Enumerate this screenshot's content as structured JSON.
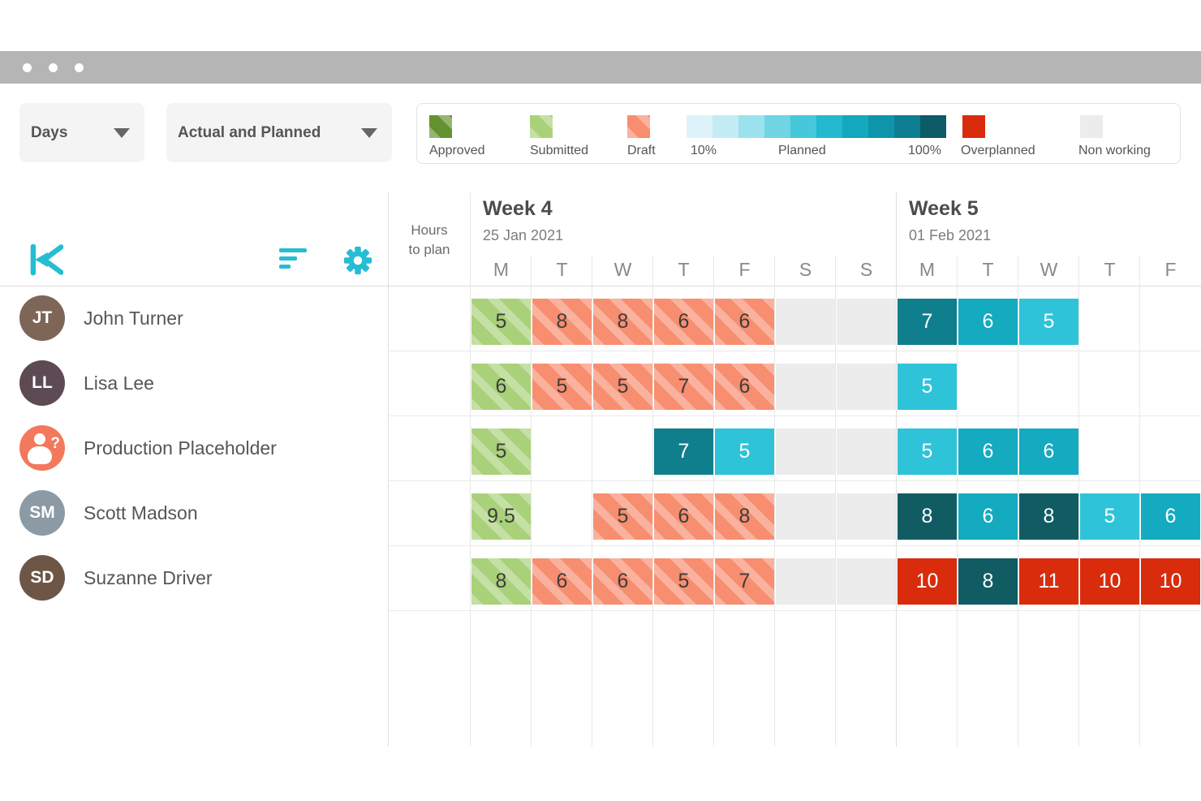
{
  "window": {
    "dots": 3
  },
  "toolbar": {
    "view_dropdown": "Days",
    "mode_dropdown": "Actual and Planned"
  },
  "legend": {
    "approved": {
      "label": "Approved",
      "color": "#64922f"
    },
    "submitted": {
      "label": "Submitted",
      "color": "#a9d179"
    },
    "draft": {
      "label": "Draft",
      "color": "#f78e70"
    },
    "planned_scale": {
      "min_label": "10%",
      "mid_label": "Planned",
      "max_label": "100%",
      "colors": [
        "#def3f9",
        "#c3ecf5",
        "#9be2ee",
        "#70d4e4",
        "#46c7da",
        "#24b9cf",
        "#14a8be",
        "#0f95ab",
        "#0e7e92",
        "#0d5b66"
      ]
    },
    "overplanned": {
      "label": "Overplanned",
      "color": "#d92c0d"
    },
    "non_working": {
      "label": "Non working",
      "color": "#ececec"
    }
  },
  "grid": {
    "hours_to_plan": "Hours to plan",
    "weeks": [
      {
        "title": "Week 4",
        "date": "25 Jan 2021",
        "days": [
          "M",
          "T",
          "W",
          "T",
          "F",
          "S",
          "S"
        ]
      },
      {
        "title": "Week 5",
        "date": "01 Feb 2021",
        "days": [
          "M",
          "T",
          "W",
          "T",
          "F"
        ]
      }
    ],
    "rows": [
      {
        "name": "John Turner",
        "initials": "JT",
        "avatar_color": "#7d6557",
        "placeholder": false,
        "cells": [
          {
            "v": "5",
            "type": "submitted"
          },
          {
            "v": "8",
            "type": "draft"
          },
          {
            "v": "8",
            "type": "draft"
          },
          {
            "v": "6",
            "type": "draft"
          },
          {
            "v": "6",
            "type": "draft"
          },
          {
            "type": "nonworking"
          },
          {
            "type": "nonworking"
          },
          {
            "v": "7",
            "type": "planned",
            "color": "#0f7e8d"
          },
          {
            "v": "6",
            "type": "planned",
            "color": "#14aac0"
          },
          {
            "v": "5",
            "type": "planned",
            "color": "#2fc3d9"
          },
          {
            "type": "empty"
          },
          {
            "type": "empty"
          }
        ]
      },
      {
        "name": "Lisa Lee",
        "initials": "LL",
        "avatar_color": "#5e4a53",
        "placeholder": false,
        "cells": [
          {
            "v": "6",
            "type": "submitted"
          },
          {
            "v": "5",
            "type": "draft"
          },
          {
            "v": "5",
            "type": "draft"
          },
          {
            "v": "7",
            "type": "draft"
          },
          {
            "v": "6",
            "type": "draft"
          },
          {
            "type": "nonworking"
          },
          {
            "type": "nonworking"
          },
          {
            "v": "5",
            "type": "planned",
            "color": "#2fc3d9"
          },
          {
            "type": "empty"
          },
          {
            "type": "empty"
          },
          {
            "type": "empty"
          },
          {
            "type": "empty"
          }
        ]
      },
      {
        "name": "Production Placeholder",
        "initials": "",
        "avatar_color": "#f4785c",
        "placeholder": true,
        "cells": [
          {
            "v": "5",
            "type": "submitted"
          },
          {
            "type": "empty"
          },
          {
            "type": "empty"
          },
          {
            "v": "7",
            "type": "planned",
            "color": "#0f7e8d"
          },
          {
            "v": "5",
            "type": "planned",
            "color": "#2fc3d9"
          },
          {
            "type": "nonworking"
          },
          {
            "type": "nonworking"
          },
          {
            "v": "5",
            "type": "planned",
            "color": "#2fc3d9"
          },
          {
            "v": "6",
            "type": "planned",
            "color": "#14aac0"
          },
          {
            "v": "6",
            "type": "planned",
            "color": "#14aac0"
          },
          {
            "type": "empty"
          },
          {
            "type": "empty"
          }
        ]
      },
      {
        "name": "Scott Madson",
        "initials": "SM",
        "avatar_color": "#8b9aa5",
        "placeholder": false,
        "cells": [
          {
            "v": "9.5",
            "type": "submitted"
          },
          {
            "type": "empty"
          },
          {
            "v": "5",
            "type": "draft"
          },
          {
            "v": "6",
            "type": "draft"
          },
          {
            "v": "8",
            "type": "draft"
          },
          {
            "type": "nonworking"
          },
          {
            "type": "nonworking"
          },
          {
            "v": "8",
            "type": "planned",
            "color": "#115c63"
          },
          {
            "v": "6",
            "type": "planned",
            "color": "#14aac0"
          },
          {
            "v": "8",
            "type": "planned",
            "color": "#115c63"
          },
          {
            "v": "5",
            "type": "planned",
            "color": "#2fc3d9"
          },
          {
            "v": "6",
            "type": "planned",
            "color": "#14aac0"
          }
        ]
      },
      {
        "name": "Suzanne Driver",
        "initials": "SD",
        "avatar_color": "#6e5647",
        "placeholder": false,
        "cells": [
          {
            "v": "8",
            "type": "submitted"
          },
          {
            "v": "6",
            "type": "draft"
          },
          {
            "v": "6",
            "type": "draft"
          },
          {
            "v": "5",
            "type": "draft"
          },
          {
            "v": "7",
            "type": "draft"
          },
          {
            "type": "nonworking"
          },
          {
            "type": "nonworking"
          },
          {
            "v": "10",
            "type": "overplanned"
          },
          {
            "v": "8",
            "type": "planned",
            "color": "#115c63"
          },
          {
            "v": "11",
            "type": "overplanned"
          },
          {
            "v": "10",
            "type": "overplanned"
          },
          {
            "v": "10",
            "type": "overplanned"
          }
        ]
      }
    ]
  },
  "colors": {
    "brand": "#25bdd4",
    "submitted": "#a9d179",
    "draft": "#f78e70",
    "overplanned": "#d92c0d",
    "nonworking": "#ececec"
  }
}
